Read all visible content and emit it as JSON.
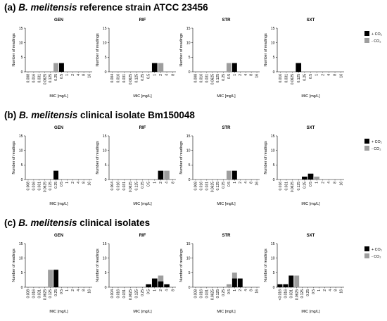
{
  "colors": {
    "co2_plus": "#000000",
    "co2_minus": "#9e9e9e",
    "axis": "#000000"
  },
  "panels": [
    {
      "label": "(a)",
      "species": "B. melitensis",
      "rest": " reference strain ATCC 23456",
      "legend_plus": "+ CO₂",
      "legend_minus": "- CO₂"
    },
    {
      "label": "(b)",
      "species": "B. melitensis",
      "rest": " clinical isolate Bm150048",
      "legend_plus": "+ CO₂",
      "legend_minus": "- CO₂"
    },
    {
      "label": "(c)",
      "species": "B. melitensis",
      "rest": " clinical isolates",
      "legend_plus": "+ CO₂",
      "legend_minus": "- CO₂"
    }
  ],
  "chart_data": [
    {
      "type": "bar",
      "panel": "a",
      "title": "GEN",
      "ylabel": "Number of readings",
      "xlabel": "MIC [mg/L]",
      "ylim": [
        0,
        15
      ],
      "categories": [
        "0.008",
        "0.016",
        "0.031",
        "0.0625",
        "0.125",
        "0.25",
        "0.5",
        "1",
        "2",
        "4",
        "8",
        "16"
      ],
      "series": [
        {
          "name": "+ CO₂",
          "values": [
            0,
            0,
            0,
            0,
            0,
            0,
            3,
            0,
            0,
            0,
            0,
            0
          ]
        },
        {
          "name": "- CO₂",
          "values": [
            0,
            0,
            0,
            0,
            0,
            3,
            0,
            0,
            0,
            0,
            0,
            0
          ]
        }
      ]
    },
    {
      "type": "bar",
      "panel": "a",
      "title": "RIF",
      "ylabel": "Number of readings",
      "xlabel": "MIC [mg/L]",
      "ylim": [
        0,
        15
      ],
      "categories": [
        "0.004",
        "0.016",
        "0.031",
        "0.0625",
        "0.125",
        "0.25",
        "0.5",
        "1",
        "2",
        "4",
        "8"
      ],
      "series": [
        {
          "name": "+ CO₂",
          "values": [
            0,
            0,
            0,
            0,
            0,
            0,
            0,
            3,
            0,
            0,
            0
          ]
        },
        {
          "name": "- CO₂",
          "values": [
            0,
            0,
            0,
            0,
            0,
            0,
            0,
            0,
            3,
            0,
            0
          ]
        }
      ]
    },
    {
      "type": "bar",
      "panel": "a",
      "title": "STR",
      "ylabel": "Number of readings",
      "xlabel": "MIC [mg/L]",
      "ylim": [
        0,
        15
      ],
      "categories": [
        "0.008",
        "0.016",
        "0.031",
        "0.0625",
        "0.125",
        "0.25",
        "0.5",
        "1",
        "2",
        "4",
        "8",
        "16"
      ],
      "series": [
        {
          "name": "+ CO₂",
          "values": [
            0,
            0,
            0,
            0,
            0,
            0,
            0,
            3,
            0,
            0,
            0,
            0
          ]
        },
        {
          "name": "- CO₂",
          "values": [
            0,
            0,
            0,
            0,
            0,
            0,
            3,
            0,
            0,
            0,
            0,
            0
          ]
        }
      ]
    },
    {
      "type": "bar",
      "panel": "a",
      "title": "SXT",
      "ylabel": "Number of readings",
      "xlabel": "MIC [mg/L]",
      "ylim": [
        0,
        15
      ],
      "categories": [
        "0.016",
        "0.031",
        "0.0625",
        "0.125",
        "0.25",
        "0.5",
        "1",
        "2",
        "4",
        "8",
        "16"
      ],
      "series": [
        {
          "name": "+ CO₂",
          "values": [
            0,
            0,
            0,
            3,
            0,
            0,
            0,
            0,
            0,
            0,
            0
          ]
        },
        {
          "name": "- CO₂",
          "values": [
            0,
            0,
            0,
            3,
            0,
            0,
            0,
            0,
            0,
            0,
            0
          ]
        }
      ]
    },
    {
      "type": "bar",
      "panel": "b",
      "title": "GEN",
      "ylabel": "Number of readings",
      "xlabel": "MIC [mg/L]",
      "ylim": [
        0,
        15
      ],
      "categories": [
        "0.008",
        "0.016",
        "0.031",
        "0.0625",
        "0.125",
        "0.25",
        "0.5",
        "1",
        "2",
        "4",
        "8",
        "16"
      ],
      "series": [
        {
          "name": "+ CO₂",
          "values": [
            0,
            0,
            0,
            0,
            0,
            3,
            0,
            0,
            0,
            0,
            0,
            0
          ]
        },
        {
          "name": "- CO₂",
          "values": [
            0,
            0,
            0,
            0,
            0,
            3,
            0,
            0,
            0,
            0,
            0,
            0
          ]
        }
      ]
    },
    {
      "type": "bar",
      "panel": "b",
      "title": "RIF",
      "ylabel": "Number of readings",
      "xlabel": "MIC [mg/L]",
      "ylim": [
        0,
        15
      ],
      "categories": [
        "0.004",
        "0.016",
        "0.031",
        "0.0625",
        "0.125",
        "0.25",
        "0.5",
        "1",
        "2",
        "4",
        "8"
      ],
      "series": [
        {
          "name": "+ CO₂",
          "values": [
            0,
            0,
            0,
            0,
            0,
            0,
            0,
            0,
            3,
            0,
            0
          ]
        },
        {
          "name": "- CO₂",
          "values": [
            0,
            0,
            0,
            0,
            0,
            0,
            0,
            0,
            0,
            3,
            0
          ]
        }
      ]
    },
    {
      "type": "bar",
      "panel": "b",
      "title": "STR",
      "ylabel": "Number of readings",
      "xlabel": "MIC [mg/L]",
      "ylim": [
        0,
        15
      ],
      "categories": [
        "0.008",
        "0.016",
        "0.031",
        "0.0625",
        "0.125",
        "0.25",
        "0.5",
        "1",
        "2",
        "4",
        "8",
        "16"
      ],
      "series": [
        {
          "name": "+ CO₂",
          "values": [
            0,
            0,
            0,
            0,
            0,
            0,
            0,
            3,
            0,
            0,
            0,
            0
          ]
        },
        {
          "name": "- CO₂",
          "values": [
            0,
            0,
            0,
            0,
            0,
            0,
            3,
            0,
            0,
            0,
            0,
            0
          ]
        }
      ]
    },
    {
      "type": "bar",
      "panel": "b",
      "title": "SXT",
      "ylabel": "Number of readings",
      "xlabel": "MIC [mg/L]",
      "ylim": [
        0,
        15
      ],
      "categories": [
        "0.016",
        "0.031",
        "0.0625",
        "0.125",
        "0.25",
        "0.5",
        "1",
        "2",
        "4",
        "8",
        "16"
      ],
      "series": [
        {
          "name": "+ CO₂",
          "values": [
            0,
            0,
            0,
            0,
            1,
            2,
            0,
            0,
            0,
            0,
            0
          ]
        },
        {
          "name": "- CO₂",
          "values": [
            0,
            0,
            0,
            0,
            0,
            2,
            1,
            0,
            0,
            0,
            0
          ]
        }
      ]
    },
    {
      "type": "bar",
      "panel": "c",
      "title": "GEN",
      "ylabel": "Number of readings",
      "xlabel": "MIC [mg/L]",
      "ylim": [
        0,
        15
      ],
      "categories": [
        "0.008",
        "0.016",
        "0.031",
        "0.0625",
        "0.125",
        "0.25",
        "0.5",
        "1",
        "2",
        "4",
        "8",
        "16"
      ],
      "series": [
        {
          "name": "+ CO₂",
          "values": [
            0,
            0,
            0,
            0,
            0,
            6,
            0,
            0,
            0,
            0,
            0,
            0
          ]
        },
        {
          "name": "- CO₂",
          "values": [
            0,
            0,
            0,
            0,
            6,
            0,
            0,
            0,
            0,
            0,
            0,
            0
          ]
        }
      ]
    },
    {
      "type": "bar",
      "panel": "c",
      "title": "RIF",
      "ylabel": "Number of readings",
      "xlabel": "MIC [mg/L]",
      "ylim": [
        0,
        15
      ],
      "categories": [
        "0.004",
        "0.016",
        "0.031",
        "0.0625",
        "0.125",
        "0.25",
        "0.5",
        "1",
        "2",
        "4",
        "8"
      ],
      "series": [
        {
          "name": "+ CO₂",
          "values": [
            0,
            0,
            0,
            0,
            0,
            0,
            1,
            3,
            2,
            1,
            0
          ]
        },
        {
          "name": "- CO₂",
          "values": [
            0,
            0,
            0,
            0,
            0,
            0,
            0,
            1,
            4,
            0,
            0
          ]
        }
      ]
    },
    {
      "type": "bar",
      "panel": "c",
      "title": "STR",
      "ylabel": "Number of readings",
      "xlabel": "MIC [mg/L]",
      "ylim": [
        0,
        15
      ],
      "categories": [
        "0.008",
        "0.016",
        "0.031",
        "0.0625",
        "0.125",
        "0.25",
        "0.5",
        "1",
        "2",
        "4",
        "8",
        "16"
      ],
      "series": [
        {
          "name": "+ CO₂",
          "values": [
            0,
            0,
            0,
            0,
            0,
            0,
            0,
            3,
            3,
            0,
            0,
            0
          ]
        },
        {
          "name": "- CO₂",
          "values": [
            0,
            0,
            0,
            0,
            0,
            0,
            1,
            5,
            0,
            0,
            0,
            0
          ]
        }
      ]
    },
    {
      "type": "bar",
      "panel": "c",
      "title": "SXT",
      "ylabel": "Number of readings",
      "xlabel": "MIC [mg/L]",
      "ylim": [
        0,
        15
      ],
      "categories": [
        "<0.016",
        "0.016",
        "0.031",
        "0.0625",
        "0.125",
        "0.25",
        "0.5",
        "1",
        "2",
        "4",
        "8",
        "16"
      ],
      "series": [
        {
          "name": "+ CO₂",
          "values": [
            1,
            1,
            4,
            0,
            0,
            0,
            0,
            0,
            0,
            0,
            0,
            0
          ]
        },
        {
          "name": "- CO₂",
          "values": [
            0,
            1,
            1,
            4,
            0,
            0,
            0,
            0,
            0,
            0,
            0,
            0
          ]
        }
      ]
    }
  ]
}
